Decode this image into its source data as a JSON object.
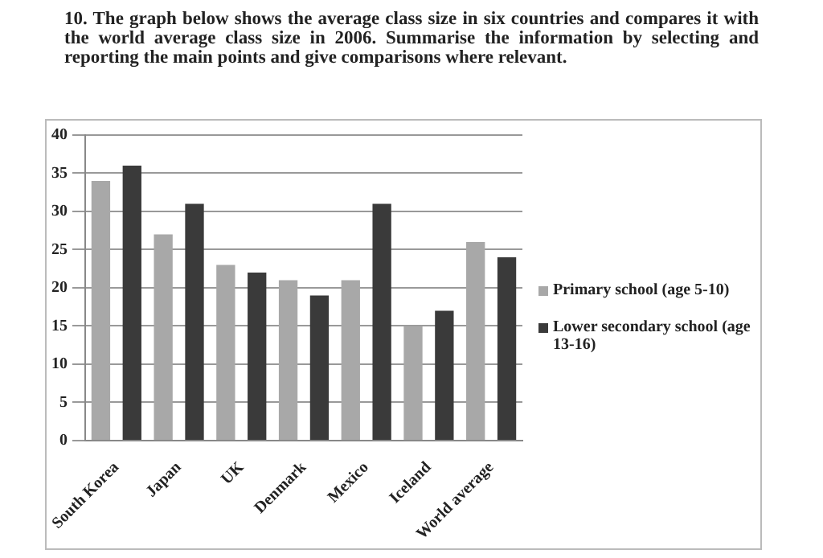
{
  "chart_data": {
    "type": "bar",
    "title": "10. The graph below shows the average class size in six countries and compares it with the world average class size in 2006. Summarise the information by selecting and reporting the main points and give comparisons where relevant.",
    "categories": [
      "South Korea",
      "Japan",
      "UK",
      "Denmark",
      "Mexico",
      "Iceland",
      "World average"
    ],
    "series": [
      {
        "name": "Primary school (age 5-10)",
        "color": "#a8a8a8",
        "values": [
          34,
          27,
          23,
          21,
          21,
          15,
          26
        ]
      },
      {
        "name": "Lower secondary school (age 13-16)",
        "color": "#3a3a3a",
        "values": [
          36,
          31,
          22,
          19,
          31,
          17,
          24
        ]
      }
    ],
    "ylim": [
      0,
      40
    ],
    "yticks": [
      0,
      5,
      10,
      15,
      20,
      25,
      30,
      35,
      40
    ],
    "grid": "y",
    "legend": "right"
  }
}
